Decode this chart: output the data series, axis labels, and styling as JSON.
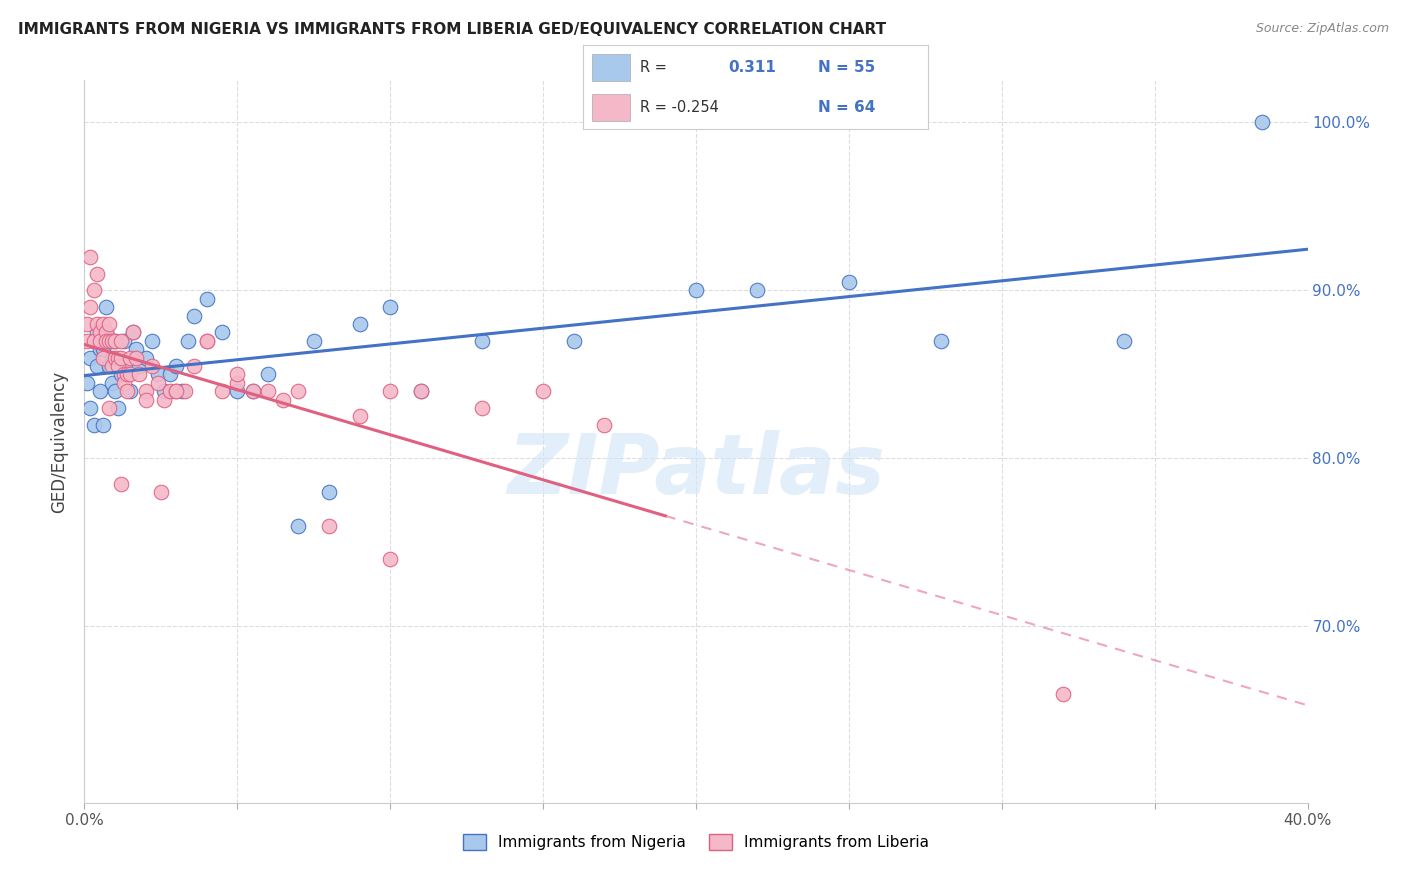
{
  "title": "IMMIGRANTS FROM NIGERIA VS IMMIGRANTS FROM LIBERIA GED/EQUIVALENCY CORRELATION CHART",
  "source": "Source: ZipAtlas.com",
  "ylabel": "GED/Equivalency",
  "xlim": [
    0.0,
    0.4
  ],
  "ylim": [
    0.595,
    1.025
  ],
  "xtick_positions": [
    0.0,
    0.05,
    0.1,
    0.15,
    0.2,
    0.25,
    0.3,
    0.35,
    0.4
  ],
  "xticklabels": [
    "0.0%",
    "",
    "",
    "",
    "",
    "",
    "",
    "",
    "40.0%"
  ],
  "ytick_positions": [
    0.7,
    0.8,
    0.9,
    1.0
  ],
  "yticklabels_right": [
    "70.0%",
    "80.0%",
    "90.0%",
    "100.0%"
  ],
  "legend_label1": "Immigrants from Nigeria",
  "legend_label2": "Immigrants from Liberia",
  "color_nigeria": "#A8C8EC",
  "color_liberia": "#F5B8C8",
  "color_line_nigeria": "#4472C4",
  "color_line_liberia": "#E06080",
  "watermark": "ZIPatlas",
  "nigeria_x": [
    0.001,
    0.002,
    0.002,
    0.003,
    0.003,
    0.004,
    0.004,
    0.005,
    0.005,
    0.006,
    0.006,
    0.007,
    0.007,
    0.008,
    0.008,
    0.009,
    0.009,
    0.01,
    0.01,
    0.011,
    0.012,
    0.013,
    0.014,
    0.015,
    0.016,
    0.017,
    0.018,
    0.02,
    0.022,
    0.024,
    0.026,
    0.028,
    0.03,
    0.032,
    0.034,
    0.036,
    0.04,
    0.045,
    0.05,
    0.055,
    0.06,
    0.07,
    0.075,
    0.08,
    0.09,
    0.1,
    0.11,
    0.13,
    0.16,
    0.2,
    0.22,
    0.25,
    0.28,
    0.34,
    0.385
  ],
  "nigeria_y": [
    0.845,
    0.86,
    0.83,
    0.87,
    0.82,
    0.855,
    0.875,
    0.84,
    0.865,
    0.82,
    0.865,
    0.89,
    0.875,
    0.855,
    0.87,
    0.845,
    0.86,
    0.84,
    0.87,
    0.83,
    0.85,
    0.87,
    0.855,
    0.84,
    0.875,
    0.865,
    0.855,
    0.86,
    0.87,
    0.85,
    0.84,
    0.85,
    0.855,
    0.84,
    0.87,
    0.885,
    0.895,
    0.875,
    0.84,
    0.84,
    0.85,
    0.76,
    0.87,
    0.78,
    0.88,
    0.89,
    0.84,
    0.87,
    0.87,
    0.9,
    0.9,
    0.905,
    0.87,
    0.87,
    1.0
  ],
  "liberia_x": [
    0.001,
    0.001,
    0.002,
    0.002,
    0.003,
    0.003,
    0.004,
    0.004,
    0.005,
    0.005,
    0.006,
    0.006,
    0.007,
    0.007,
    0.008,
    0.008,
    0.009,
    0.009,
    0.01,
    0.01,
    0.011,
    0.011,
    0.012,
    0.012,
    0.013,
    0.013,
    0.014,
    0.014,
    0.015,
    0.015,
    0.016,
    0.017,
    0.018,
    0.02,
    0.022,
    0.024,
    0.026,
    0.028,
    0.03,
    0.033,
    0.036,
    0.04,
    0.045,
    0.05,
    0.055,
    0.06,
    0.065,
    0.07,
    0.08,
    0.09,
    0.1,
    0.11,
    0.13,
    0.15,
    0.17,
    0.02,
    0.03,
    0.04,
    0.05,
    0.1,
    0.008,
    0.012,
    0.025,
    0.32
  ],
  "liberia_y": [
    0.87,
    0.88,
    0.92,
    0.89,
    0.87,
    0.9,
    0.91,
    0.88,
    0.875,
    0.87,
    0.86,
    0.88,
    0.875,
    0.87,
    0.88,
    0.87,
    0.87,
    0.855,
    0.87,
    0.86,
    0.86,
    0.855,
    0.87,
    0.86,
    0.85,
    0.845,
    0.84,
    0.85,
    0.86,
    0.85,
    0.875,
    0.86,
    0.85,
    0.84,
    0.855,
    0.845,
    0.835,
    0.84,
    0.84,
    0.84,
    0.855,
    0.87,
    0.84,
    0.845,
    0.84,
    0.84,
    0.835,
    0.84,
    0.76,
    0.825,
    0.84,
    0.84,
    0.83,
    0.84,
    0.82,
    0.835,
    0.84,
    0.87,
    0.85,
    0.74,
    0.83,
    0.785,
    0.78,
    0.66
  ],
  "background_color": "#FFFFFF",
  "grid_color": "#DDDDDD"
}
